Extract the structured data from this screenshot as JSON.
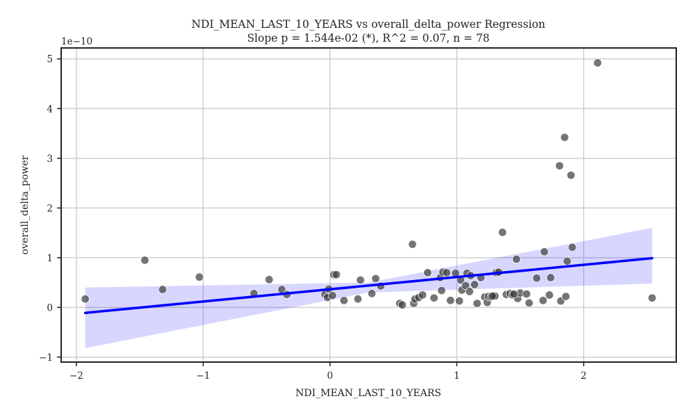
{
  "chart_data": {
    "type": "scatter",
    "title": "NDI_MEAN_LAST_10_YEARS vs overall_delta_power Regression",
    "subtitle": "Slope p = 1.544e-02 (*), R^2 = 0.07, n = 78",
    "xlabel": "NDI_MEAN_LAST_10_YEARS",
    "ylabel": "overall_delta_power",
    "y_offset_label": "1e−10",
    "xlim": [
      -2.12,
      2.73
    ],
    "ylim": [
      -1.1,
      5.22
    ],
    "x_ticks": [
      -2,
      -1,
      0,
      1,
      2
    ],
    "x_tick_labels": [
      "−2",
      "−1",
      "0",
      "1",
      "2"
    ],
    "y_ticks": [
      -1,
      0,
      1,
      2,
      3,
      4,
      5
    ],
    "y_tick_labels": [
      "−1",
      "0",
      "1",
      "2",
      "3",
      "4",
      "5"
    ],
    "grid": true,
    "y_unit_scale": "1e-10",
    "regression_line": {
      "x": [
        -1.93,
        2.54
      ],
      "y": [
        -0.11,
        0.99
      ],
      "color": "#0000ff"
    },
    "confidence_band": {
      "x": [
        -1.93,
        0.3,
        2.54
      ],
      "upper": [
        0.4,
        0.5,
        1.6
      ],
      "lower": [
        -0.82,
        0.3,
        0.48
      ],
      "color": "#0000ff"
    },
    "points": [
      {
        "x": -1.93,
        "y": 0.17
      },
      {
        "x": -1.46,
        "y": 0.95
      },
      {
        "x": -1.32,
        "y": 0.36
      },
      {
        "x": -1.03,
        "y": 0.61
      },
      {
        "x": -0.6,
        "y": 0.28
      },
      {
        "x": -0.48,
        "y": 0.56
      },
      {
        "x": -0.38,
        "y": 0.36
      },
      {
        "x": -0.34,
        "y": 0.26
      },
      {
        "x": -0.04,
        "y": 0.26
      },
      {
        "x": -0.02,
        "y": 0.2
      },
      {
        "x": -0.01,
        "y": 0.37
      },
      {
        "x": 0.02,
        "y": 0.24
      },
      {
        "x": 0.03,
        "y": 0.66
      },
      {
        "x": 0.05,
        "y": 0.66
      },
      {
        "x": 0.11,
        "y": 0.14
      },
      {
        "x": 0.22,
        "y": 0.17
      },
      {
        "x": 0.24,
        "y": 0.55
      },
      {
        "x": 0.33,
        "y": 0.28
      },
      {
        "x": 0.36,
        "y": 0.58
      },
      {
        "x": 0.4,
        "y": 0.43
      },
      {
        "x": 0.55,
        "y": 0.08
      },
      {
        "x": 0.57,
        "y": 0.05
      },
      {
        "x": 0.65,
        "y": 1.27
      },
      {
        "x": 0.66,
        "y": 0.08
      },
      {
        "x": 0.67,
        "y": 0.17
      },
      {
        "x": 0.7,
        "y": 0.2
      },
      {
        "x": 0.73,
        "y": 0.25
      },
      {
        "x": 0.77,
        "y": 0.7
      },
      {
        "x": 0.82,
        "y": 0.19
      },
      {
        "x": 0.87,
        "y": 0.6
      },
      {
        "x": 0.88,
        "y": 0.34
      },
      {
        "x": 0.89,
        "y": 0.71
      },
      {
        "x": 0.92,
        "y": 0.7
      },
      {
        "x": 0.95,
        "y": 0.14
      },
      {
        "x": 0.99,
        "y": 0.69
      },
      {
        "x": 1.02,
        "y": 0.13
      },
      {
        "x": 1.03,
        "y": 0.55
      },
      {
        "x": 1.04,
        "y": 0.35
      },
      {
        "x": 1.07,
        "y": 0.44
      },
      {
        "x": 1.08,
        "y": 0.69
      },
      {
        "x": 1.1,
        "y": 0.32
      },
      {
        "x": 1.11,
        "y": 0.64
      },
      {
        "x": 1.14,
        "y": 0.46
      },
      {
        "x": 1.16,
        "y": 0.08
      },
      {
        "x": 1.19,
        "y": 0.6
      },
      {
        "x": 1.22,
        "y": 0.21
      },
      {
        "x": 1.24,
        "y": 0.1
      },
      {
        "x": 1.25,
        "y": 0.22
      },
      {
        "x": 1.27,
        "y": 0.21
      },
      {
        "x": 1.29,
        "y": 0.22
      },
      {
        "x": 1.3,
        "y": 0.23
      },
      {
        "x": 1.31,
        "y": 0.7
      },
      {
        "x": 1.33,
        "y": 0.71
      },
      {
        "x": 1.36,
        "y": 1.51
      },
      {
        "x": 1.39,
        "y": 0.26
      },
      {
        "x": 1.42,
        "y": 0.28
      },
      {
        "x": 1.44,
        "y": 0.25
      },
      {
        "x": 1.47,
        "y": 0.97
      },
      {
        "x": 1.48,
        "y": 0.18
      },
      {
        "x": 1.5,
        "y": 0.29
      },
      {
        "x": 1.55,
        "y": 0.27
      },
      {
        "x": 1.57,
        "y": 0.09
      },
      {
        "x": 1.63,
        "y": 0.59
      },
      {
        "x": 1.68,
        "y": 0.14
      },
      {
        "x": 1.69,
        "y": 1.12
      },
      {
        "x": 1.73,
        "y": 0.25
      },
      {
        "x": 1.74,
        "y": 0.6
      },
      {
        "x": 1.81,
        "y": 2.85
      },
      {
        "x": 1.82,
        "y": 0.13
      },
      {
        "x": 1.85,
        "y": 3.42
      },
      {
        "x": 1.86,
        "y": 0.22
      },
      {
        "x": 1.87,
        "y": 0.93
      },
      {
        "x": 1.9,
        "y": 2.66
      },
      {
        "x": 1.91,
        "y": 1.21
      },
      {
        "x": 2.11,
        "y": 4.92
      },
      {
        "x": 2.54,
        "y": 0.19
      },
      {
        "x": 1.28,
        "y": 0.23
      },
      {
        "x": 1.45,
        "y": 0.27
      }
    ]
  }
}
